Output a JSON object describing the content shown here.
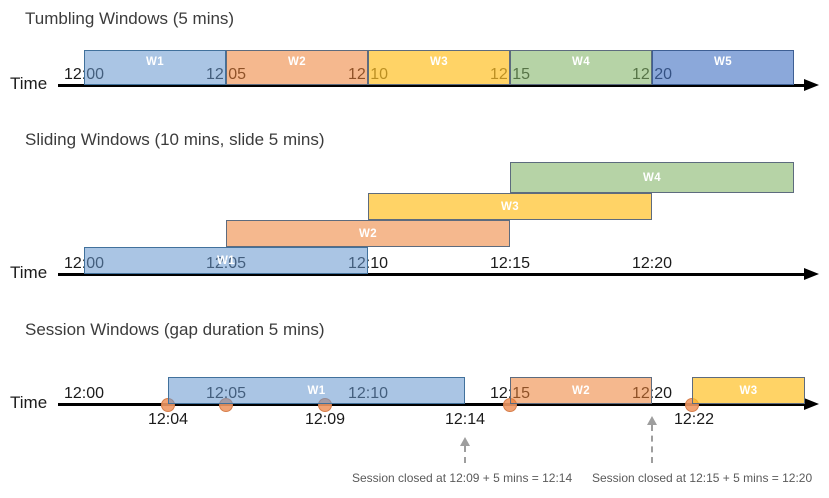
{
  "palette": {
    "blue": {
      "fill": "rgba(100,150,205,0.55)",
      "border": "#41719C"
    },
    "orange": {
      "fill": "rgba(237,125,49,0.55)",
      "border": "#5D6B7E"
    },
    "yellow": {
      "fill": "rgba(255,192,37,0.70)",
      "border": "#5D6B7E"
    },
    "green": {
      "fill": "rgba(130,179,102,0.58)",
      "border": "#5D6B7E"
    },
    "medblue": {
      "fill": "rgba(68,114,196,0.62)",
      "border": "#3E5F94"
    }
  },
  "timeline_color": "#000000",
  "event_dot": {
    "fill": "rgba(240,152,100,0.9)",
    "border": "rgba(212,124,72,0.9)"
  },
  "sections": [
    {
      "id": "tumbling",
      "title": "Tumbling Windows (5 mins)",
      "time_label": "Time",
      "ticks": [
        "12:00",
        "12:05",
        "12:10",
        "12:15",
        "12:20"
      ],
      "windows": [
        {
          "label": "W1",
          "color": "blue",
          "start": "12:00",
          "end": "12:05"
        },
        {
          "label": "W2",
          "color": "orange",
          "start": "12:05",
          "end": "12:10"
        },
        {
          "label": "W3",
          "color": "yellow",
          "start": "12:10",
          "end": "12:15"
        },
        {
          "label": "W4",
          "color": "green",
          "start": "12:15",
          "end": "12:20"
        },
        {
          "label": "W5",
          "color": "medblue",
          "start": "12:20",
          "end": "12:25"
        }
      ]
    },
    {
      "id": "sliding",
      "title": "Sliding Windows (10 mins, slide 5 mins)",
      "time_label": "Time",
      "ticks": [
        "12:00",
        "12:05",
        "12:10",
        "12:15",
        "12:20"
      ],
      "windows": [
        {
          "label": "W1",
          "color": "blue",
          "start": "12:00",
          "end": "12:10"
        },
        {
          "label": "W2",
          "color": "orange",
          "start": "12:05",
          "end": "12:15"
        },
        {
          "label": "W3",
          "color": "yellow",
          "start": "12:10",
          "end": "12:20"
        },
        {
          "label": "W4",
          "color": "green",
          "start": "12:15",
          "end": "12:25"
        }
      ]
    },
    {
      "id": "session",
      "title": "Session Windows (gap duration 5 mins)",
      "time_label": "Time",
      "ticks": [
        "12:00",
        "12:05",
        "12:10",
        "12:15",
        "12:20"
      ],
      "windows": [
        {
          "label": "W1",
          "color": "blue",
          "start": "12:04",
          "end": "12:14"
        },
        {
          "label": "W2",
          "color": "orange",
          "start": "12:15",
          "end": "12:20"
        },
        {
          "label": "W3",
          "color": "yellow",
          "start": "12:22"
        }
      ],
      "event_times": [
        "12:04",
        "12:05",
        "12:09",
        "12:15",
        "12:22"
      ],
      "below_labels": [
        "12:04",
        "12:09",
        "12:14",
        "12:22"
      ],
      "annotations": [
        "Session closed at 12:09 + 5 mins = 12:14",
        "Session closed at 12:15 + 5 mins = 12:20"
      ]
    }
  ]
}
